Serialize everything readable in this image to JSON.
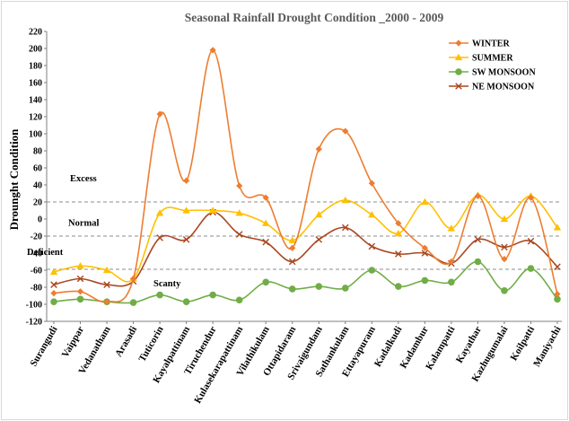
{
  "chart_data": {
    "type": "line",
    "title": "Seasonal Rainfall Drought Condition _2000 - 2009",
    "xlabel": "",
    "ylabel": "Drounght Condition",
    "ylim": [
      -120,
      220
    ],
    "ytick_step": 20,
    "categories": [
      "Surangudi",
      "Vaippar",
      "Vedanatham",
      "Arasadi",
      "Tuticorin",
      "Kayalpattinam",
      "Tiruchendur",
      "Kulasekarapattinam",
      "Vilathikulam",
      "Ottapidaram",
      "Srivaigundam",
      "Sathankulam",
      "Ettayapuram",
      "Kadalkudi",
      "Kadambur",
      "Kalampatti",
      "Kayathar",
      "Kazhugumalai",
      "Koilpatti",
      "Maniyachi"
    ],
    "series": [
      {
        "name": "WINTER",
        "color": "#ED7D31",
        "marker": "diamond",
        "values": [
          -87,
          -85,
          -97,
          -70,
          123,
          45,
          198,
          39,
          25,
          -34,
          82,
          103,
          42,
          -5,
          -34,
          -50,
          27,
          -47,
          25,
          -88
        ]
      },
      {
        "name": "SUMMER",
        "color": "#FFC000",
        "marker": "triangle",
        "values": [
          -62,
          -55,
          -60,
          -70,
          7,
          10,
          10,
          7,
          -5,
          -25,
          5,
          22,
          5,
          -17,
          20,
          -11,
          28,
          0,
          27,
          -10
        ]
      },
      {
        "name": "SW MONSOON",
        "color": "#70AD47",
        "marker": "circle",
        "values": [
          -97,
          -94,
          -97,
          -98,
          -89,
          -97,
          -89,
          -95,
          -74,
          -82,
          -79,
          -81,
          -60,
          -79,
          -72,
          -74,
          -50,
          -84,
          -58,
          -94
        ]
      },
      {
        "name": "NE MONSOON",
        "color": "#A9471F",
        "marker": "x",
        "values": [
          -77,
          -70,
          -77,
          -73,
          -22,
          -24,
          8,
          -18,
          -27,
          -50,
          -24,
          -10,
          -32,
          -41,
          -40,
          -52,
          -24,
          -33,
          -26,
          -56
        ]
      }
    ],
    "reference_lines": [
      20,
      -20,
      -59
    ],
    "zone_labels": [
      "Excess",
      "Normal",
      "Deficient",
      "Scanty"
    ],
    "zone_label_values": [
      44,
      -8,
      -42,
      -79
    ],
    "legend_position": "top-right",
    "grid": false
  }
}
